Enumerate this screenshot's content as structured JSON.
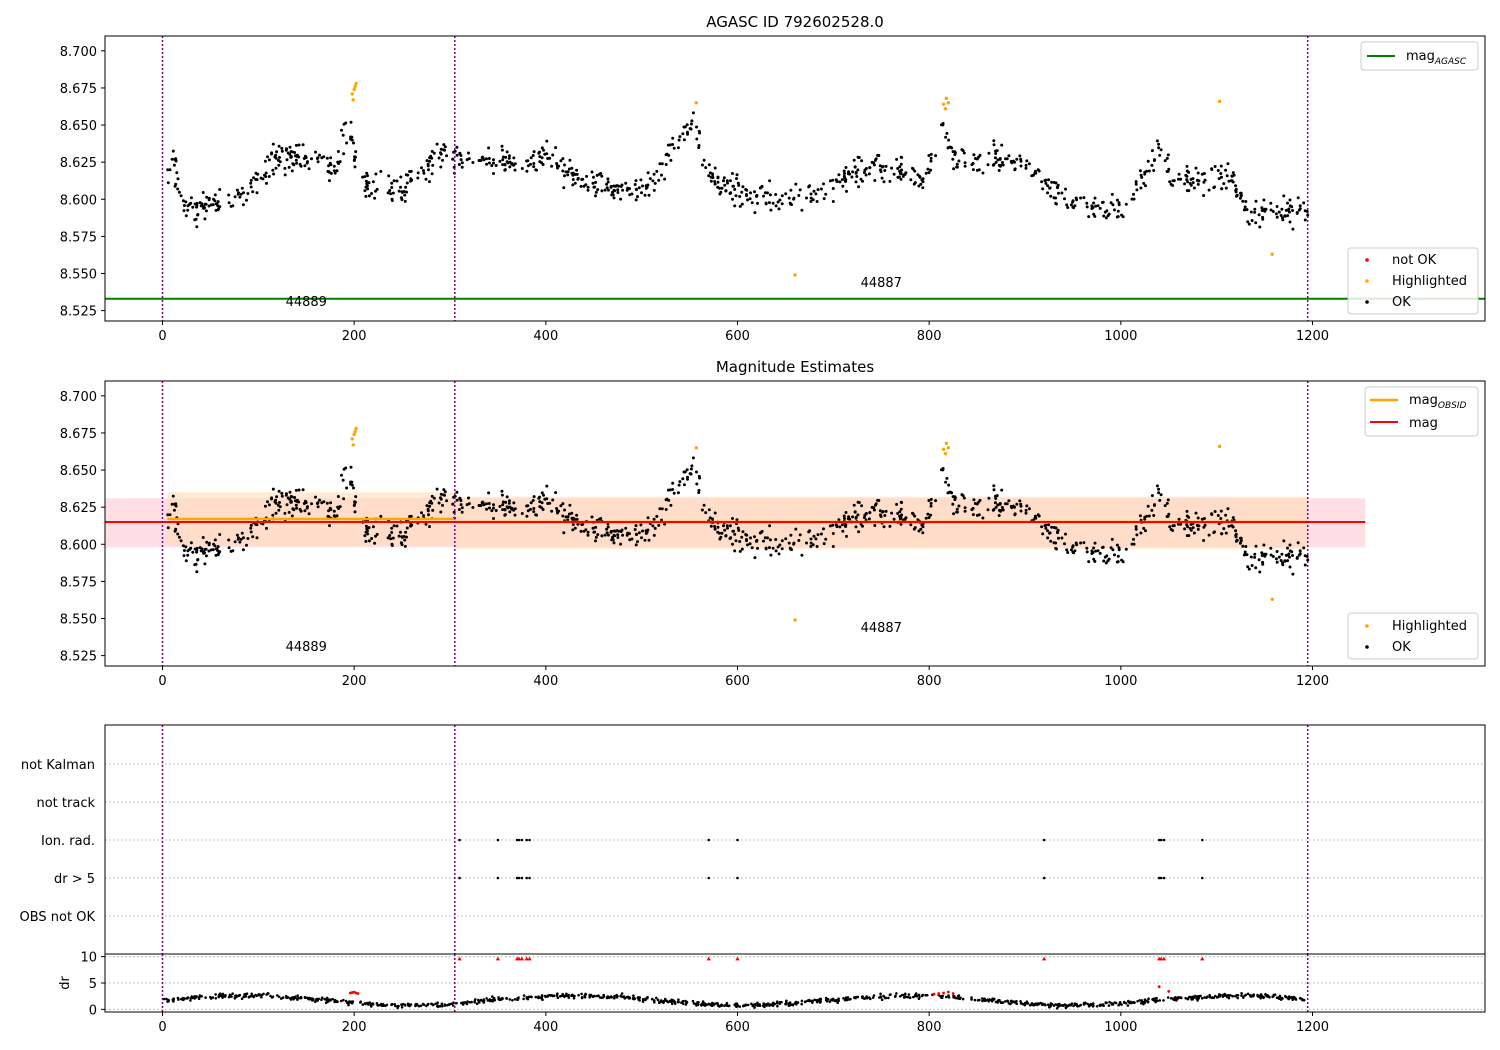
{
  "chart_data": [
    {
      "type": "scatter",
      "title": "AGASC ID 792602528.0",
      "xlim": [
        -60,
        1380
      ],
      "ylim": [
        8.518,
        8.71
      ],
      "x_ticks": [
        0,
        200,
        400,
        600,
        800,
        1000,
        1200
      ],
      "y_ticks": [
        8.525,
        8.55,
        8.575,
        8.6,
        8.625,
        8.65,
        8.675,
        8.7
      ],
      "obsid_boundaries": [
        0,
        305,
        1195
      ],
      "obsid_labels": [
        {
          "text": "44889",
          "x": 150,
          "y": 8.528
        },
        {
          "text": "44887",
          "x": 750,
          "y": 8.541
        }
      ],
      "reference_lines": [
        {
          "name": "mag_AGASC",
          "label_main": "mag",
          "label_sub": "AGASC",
          "y": 8.533,
          "x_range": [
            -60,
            1380
          ],
          "color": "#008000"
        }
      ],
      "point_legend": [
        {
          "label": "not OK",
          "color": "#ff0000"
        },
        {
          "label": "Highlighted",
          "color": "#ffa500"
        },
        {
          "label": "OK",
          "color": "#000000"
        }
      ],
      "highlighted_points": [
        [
          198,
          8.671
        ],
        [
          199,
          8.667
        ],
        [
          200,
          8.674
        ],
        [
          201,
          8.676
        ],
        [
          202,
          8.678
        ],
        [
          557,
          8.665
        ],
        [
          660,
          8.549
        ],
        [
          815,
          8.664
        ],
        [
          817,
          8.661
        ],
        [
          818,
          8.668
        ],
        [
          820,
          8.665
        ],
        [
          1103,
          8.666
        ],
        [
          1158,
          8.563
        ]
      ]
    },
    {
      "type": "scatter",
      "title": "Magnitude Estimates",
      "xlim": [
        -60,
        1380
      ],
      "ylim": [
        8.518,
        8.71
      ],
      "x_ticks": [
        0,
        200,
        400,
        600,
        800,
        1000,
        1200
      ],
      "y_ticks": [
        8.525,
        8.55,
        8.575,
        8.6,
        8.625,
        8.65,
        8.675,
        8.7
      ],
      "obsid_boundaries": [
        0,
        305,
        1195
      ],
      "obsid_labels": [
        {
          "text": "44889",
          "x": 150,
          "y": 8.528
        },
        {
          "text": "44887",
          "x": 750,
          "y": 8.541
        }
      ],
      "reference_lines": [
        {
          "name": "mag_OBSID",
          "label_main": "mag",
          "label_sub": "OBSID",
          "segments": [
            {
              "x": [
                5,
                305
              ],
              "y": 8.617
            },
            {
              "x": [
                305,
                1195
              ],
              "y": 8.615
            }
          ],
          "color": "#ffa500"
        },
        {
          "name": "mag",
          "label_main": "mag",
          "label_sub": "",
          "y": 8.615,
          "x_range": [
            -60,
            1255
          ],
          "color": "#ff0000"
        }
      ],
      "bands": [
        {
          "color": "#ffc0cb",
          "x": [
            -60,
            1255
          ],
          "y": [
            8.598,
            8.631
          ]
        },
        {
          "color": "#ffdab0",
          "x": [
            5,
            305
          ],
          "y": [
            8.599,
            8.635
          ]
        },
        {
          "color": "#ffdab0",
          "x": [
            305,
            1195
          ],
          "y": [
            8.597,
            8.632
          ]
        }
      ],
      "point_legend": [
        {
          "label": "Highlighted",
          "color": "#ffa500"
        },
        {
          "label": "OK",
          "color": "#000000"
        }
      ],
      "highlighted_points": [
        [
          198,
          8.671
        ],
        [
          199,
          8.667
        ],
        [
          200,
          8.674
        ],
        [
          201,
          8.676
        ],
        [
          202,
          8.678
        ],
        [
          557,
          8.665
        ],
        [
          660,
          8.549
        ],
        [
          815,
          8.664
        ],
        [
          817,
          8.661
        ],
        [
          818,
          8.668
        ],
        [
          820,
          8.665
        ],
        [
          1103,
          8.666
        ],
        [
          1158,
          8.563
        ]
      ]
    },
    {
      "type": "scatter",
      "title": "",
      "xlim": [
        -60,
        1380
      ],
      "categories": [
        "not Kalman",
        "not track",
        "Ion. rad.",
        "dr > 5",
        "OBS not OK"
      ],
      "obsid_boundaries": [
        0,
        305,
        1195
      ],
      "flags": {
        "Ion. rad.": [
          310,
          350,
          370,
          372,
          375,
          380,
          383,
          570,
          600,
          920,
          1040,
          1042,
          1045,
          1085
        ],
        "dr > 5": [
          310,
          350,
          370,
          372,
          375,
          380,
          383,
          570,
          600,
          920,
          1040,
          1042,
          1045,
          1085
        ]
      }
    },
    {
      "type": "scatter",
      "title": "",
      "ylabel": "dr",
      "xlim": [
        -60,
        1380
      ],
      "ylim": [
        -0.5,
        10.5
      ],
      "x_ticks": [
        0,
        200,
        400,
        600,
        800,
        1000,
        1200
      ],
      "y_ticks": [
        0,
        5,
        10
      ],
      "obsid_boundaries": [
        0,
        305,
        1195
      ],
      "clipped_at": 10,
      "clipped_points": [
        310,
        350,
        370,
        372,
        375,
        380,
        383,
        570,
        600,
        920,
        1040,
        1042,
        1045,
        1085
      ],
      "red_points": [
        [
          196,
          3.1
        ],
        [
          198,
          3.2
        ],
        [
          200,
          3.3
        ],
        [
          202,
          3.1
        ],
        [
          204,
          3.0
        ],
        [
          805,
          2.9
        ],
        [
          810,
          3.0
        ],
        [
          815,
          3.1
        ],
        [
          820,
          3.3
        ],
        [
          825,
          3.0
        ],
        [
          1040,
          4.3
        ],
        [
          1050,
          3.4
        ]
      ]
    }
  ]
}
